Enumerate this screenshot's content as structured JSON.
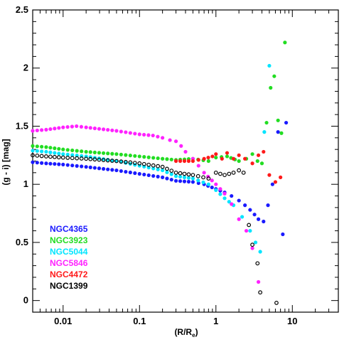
{
  "chart_data": {
    "type": "scatter",
    "xscale": "log",
    "xlim": [
      0.004,
      40
    ],
    "ylim": [
      -0.1,
      2.5
    ],
    "x_ticks": [
      0.01,
      0.1,
      1,
      10
    ],
    "x_tick_labels": [
      "0.01",
      "0.1",
      "1",
      "10"
    ],
    "y_ticks": [
      0,
      0.5,
      1,
      1.5,
      2,
      2.5
    ],
    "y_tick_labels": [
      "0",
      "0.5",
      "1",
      "1.5",
      "2",
      "2.5"
    ],
    "xlabel": "(R/R",
    "xlabel_sub": "e",
    "xlabel_end": ")",
    "ylabel": "(g - i)  [mag]",
    "grid": false,
    "legend_position": "bottom-left",
    "series": [
      {
        "name": "NGC4365",
        "color": "#1a1aff",
        "marker": "filled",
        "x": [
          0.004,
          0.006,
          0.01,
          0.02,
          0.05,
          0.1,
          0.2,
          0.3,
          0.5,
          0.7,
          1.0,
          1.3,
          1.6,
          2.0,
          2.4,
          2.8,
          3.2,
          3.6,
          4.2,
          4.8,
          5.5,
          6.5,
          7.5,
          8.3
        ],
        "y": [
          1.19,
          1.18,
          1.17,
          1.15,
          1.12,
          1.09,
          1.06,
          1.03,
          1.02,
          1.0,
          0.96,
          0.93,
          0.9,
          0.86,
          0.82,
          0.78,
          0.74,
          0.7,
          0.68,
          0.82,
          1.0,
          1.45,
          0.57,
          1.53
        ]
      },
      {
        "name": "NGC3923",
        "color": "#22dd22",
        "marker": "filled",
        "x": [
          0.004,
          0.006,
          0.01,
          0.02,
          0.05,
          0.1,
          0.2,
          0.3,
          0.5,
          0.8,
          1.0,
          1.4,
          2.0,
          2.5,
          3.0,
          3.5,
          4.0,
          4.6,
          5.2,
          5.8,
          6.5,
          7.2,
          8.0
        ],
        "y": [
          1.33,
          1.32,
          1.3,
          1.28,
          1.26,
          1.24,
          1.22,
          1.21,
          1.22,
          1.2,
          1.23,
          1.24,
          1.2,
          1.22,
          1.26,
          1.2,
          1.18,
          1.53,
          1.83,
          1.93,
          1.55,
          1.44,
          2.22
        ]
      },
      {
        "name": "NGC5044",
        "color": "#00e5ff",
        "marker": "filled",
        "x": [
          0.004,
          0.006,
          0.01,
          0.02,
          0.05,
          0.1,
          0.2,
          0.3,
          0.5,
          0.8,
          1.0,
          1.3,
          1.7,
          2.2,
          2.8,
          3.3,
          3.8,
          4.3,
          5.0
        ],
        "y": [
          1.29,
          1.28,
          1.26,
          1.24,
          1.2,
          1.16,
          1.12,
          1.07,
          1.05,
          1.0,
          0.95,
          0.88,
          0.82,
          0.72,
          0.6,
          0.5,
          0.42,
          1.45,
          2.02
        ]
      },
      {
        "name": "NGC5846",
        "color": "#ff22ff",
        "marker": "filled",
        "x": [
          0.004,
          0.006,
          0.01,
          0.015,
          0.02,
          0.05,
          0.1,
          0.15,
          0.2,
          0.25,
          0.3,
          0.35,
          0.4,
          0.5,
          0.7,
          1.0,
          1.3,
          1.6,
          2.0,
          2.5,
          3.0,
          3.6
        ],
        "y": [
          1.46,
          1.47,
          1.49,
          1.5,
          1.49,
          1.46,
          1.43,
          1.42,
          1.4,
          1.38,
          1.37,
          1.33,
          1.28,
          1.22,
          1.1,
          1.0,
          0.92,
          0.83,
          0.7,
          0.6,
          0.45,
          0.16
        ]
      },
      {
        "name": "NGC4472",
        "color": "#ff1a1a",
        "marker": "filled",
        "x": [
          0.3,
          0.5,
          0.7,
          0.9,
          1.0,
          1.2,
          1.4,
          1.7,
          2.0,
          2.4,
          3.0,
          3.6,
          4.2,
          5.0,
          6.0,
          7.0
        ],
        "y": [
          1.2,
          1.2,
          1.22,
          1.24,
          1.26,
          1.22,
          1.27,
          1.22,
          1.25,
          1.22,
          1.18,
          1.25,
          1.28,
          1.08,
          1.02,
          1.06
        ]
      },
      {
        "name": "NGC1399",
        "color": "#000000",
        "marker": "open",
        "x": [
          0.004,
          0.006,
          0.01,
          0.02,
          0.05,
          0.1,
          0.2,
          0.3,
          0.5,
          0.8,
          1.0,
          1.3,
          1.7,
          2.0,
          2.3,
          2.7,
          3.0,
          3.5,
          3.8,
          6.2
        ],
        "y": [
          1.25,
          1.24,
          1.23,
          1.22,
          1.2,
          1.18,
          1.15,
          1.1,
          1.08,
          1.05,
          1.1,
          1.08,
          1.1,
          1.12,
          1.1,
          0.65,
          0.48,
          0.32,
          0.07,
          -0.02
        ]
      }
    ]
  }
}
